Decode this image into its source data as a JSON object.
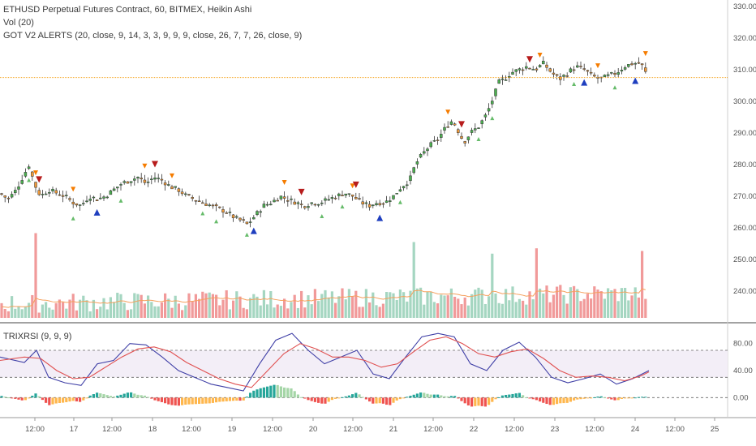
{
  "legend": {
    "main_title": "ETHUSD Perpetual Futures Contract, 60, BITMEX, Heikin Ashi",
    "vol_title": "Vol (20)",
    "alerts_title": "GOT V2 ALERTS (20, close, 9, 14, 3, 3, 9, 9, 9, close, 26, 7, 7, 26, close, 9)",
    "trix_title": "TRIXRSI (9, 9, 9)"
  },
  "colors": {
    "up": "#26a69a",
    "down": "#ef9a3a",
    "vol_up": "#a5d6c1",
    "vol_down": "#f19a9a",
    "vol_ma": "#f5a05c",
    "price_line": "#f5a623",
    "trix_blue": "#3f3fa6",
    "trix_red": "#e05050",
    "hist_green": "#26a69a",
    "hist_light_green": "#a5d6a7",
    "hist_red": "#ef5350",
    "hist_orange": "#ffb74d",
    "alert_orange": "#f57c00",
    "alert_red": "#b71c1c",
    "alert_green": "#66bb6a",
    "alert_blue": "#1f3fbf"
  },
  "chart_data": [
    {
      "type": "candlestick",
      "name": "ETHUSD Heikin Ashi",
      "ylim": [
        230,
        332
      ],
      "yticks": [
        "330.00",
        "320.00",
        "310.00",
        "300.00",
        "290.00",
        "280.00",
        "270.00",
        "260.00",
        "250.00",
        "240.00"
      ],
      "last_price": 307.5,
      "x_ticks": [
        "12:00",
        "17",
        "12:00",
        "18",
        "12:00",
        "19",
        "12:00",
        "20",
        "12:00",
        "21",
        "12:00",
        "22",
        "12:00",
        "23",
        "12:00",
        "24",
        "12:00",
        "25"
      ],
      "close_path": [
        [
          0,
          271
        ],
        [
          10,
          269
        ],
        [
          20,
          272
        ],
        [
          30,
          277
        ],
        [
          36,
          280
        ],
        [
          42,
          274
        ],
        [
          50,
          270
        ],
        [
          60,
          272
        ],
        [
          70,
          271
        ],
        [
          80,
          270
        ],
        [
          90,
          268
        ],
        [
          100,
          267
        ],
        [
          110,
          270
        ],
        [
          120,
          269
        ],
        [
          130,
          270
        ],
        [
          140,
          272
        ],
        [
          150,
          274
        ],
        [
          160,
          275
        ],
        [
          170,
          276
        ],
        [
          180,
          274
        ],
        [
          190,
          276
        ],
        [
          200,
          275
        ],
        [
          210,
          273
        ],
        [
          220,
          272
        ],
        [
          230,
          270
        ],
        [
          240,
          269
        ],
        [
          250,
          268
        ],
        [
          260,
          267
        ],
        [
          270,
          266
        ],
        [
          280,
          265
        ],
        [
          290,
          263
        ],
        [
          300,
          262
        ],
        [
          305,
          261
        ],
        [
          315,
          264
        ],
        [
          325,
          267
        ],
        [
          335,
          268
        ],
        [
          345,
          270
        ],
        [
          355,
          269
        ],
        [
          365,
          268
        ],
        [
          375,
          267
        ],
        [
          385,
          268
        ],
        [
          395,
          268
        ],
        [
          405,
          269
        ],
        [
          415,
          270
        ],
        [
          425,
          271
        ],
        [
          435,
          270
        ],
        [
          445,
          268
        ],
        [
          455,
          267
        ],
        [
          465,
          268
        ],
        [
          475,
          268
        ],
        [
          485,
          270
        ],
        [
          495,
          273
        ],
        [
          505,
          275
        ],
        [
          512,
          280
        ],
        [
          520,
          283
        ],
        [
          530,
          286
        ],
        [
          540,
          288
        ],
        [
          550,
          292
        ],
        [
          558,
          294
        ],
        [
          566,
          290
        ],
        [
          572,
          287
        ],
        [
          580,
          290
        ],
        [
          590,
          292
        ],
        [
          600,
          296
        ],
        [
          608,
          301
        ],
        [
          615,
          306
        ],
        [
          622,
          307
        ],
        [
          630,
          309
        ],
        [
          640,
          310
        ],
        [
          650,
          311
        ],
        [
          660,
          310
        ],
        [
          670,
          312
        ],
        [
          680,
          309
        ],
        [
          690,
          307
        ],
        [
          700,
          309
        ],
        [
          710,
          311
        ],
        [
          720,
          310
        ],
        [
          730,
          308
        ],
        [
          740,
          307
        ],
        [
          750,
          308
        ],
        [
          760,
          309
        ],
        [
          770,
          311
        ],
        [
          780,
          312
        ],
        [
          790,
          312
        ],
        [
          800,
          307
        ]
      ]
    },
    {
      "type": "bar",
      "name": "Vol (20)",
      "description_only_of_shape": "volume histogram with moving-average line",
      "tall_spikes": [
        [
          44,
          0.95
        ],
        [
          510,
          0.85
        ],
        [
          608,
          0.72
        ],
        [
          663,
          0.78
        ],
        [
          792,
          0.75
        ]
      ]
    },
    {
      "type": "line",
      "name": "TRIXRSI (9, 9, 9)",
      "ylim": [
        -20,
        100
      ],
      "yticks": [
        "80.00",
        "40.00",
        "0.00"
      ],
      "levels": [
        70,
        30,
        0
      ],
      "series": [
        {
          "name": "blue",
          "values": [
            [
              0,
              60
            ],
            [
              30,
              52
            ],
            [
              45,
              70
            ],
            [
              60,
              30
            ],
            [
              80,
              22
            ],
            [
              100,
              18
            ],
            [
              120,
              50
            ],
            [
              140,
              55
            ],
            [
              160,
              80
            ],
            [
              180,
              78
            ],
            [
              200,
              60
            ],
            [
              220,
              40
            ],
            [
              240,
              30
            ],
            [
              260,
              20
            ],
            [
              280,
              15
            ],
            [
              300,
              10
            ],
            [
              320,
              50
            ],
            [
              340,
              85
            ],
            [
              360,
              95
            ],
            [
              380,
              70
            ],
            [
              400,
              50
            ],
            [
              420,
              60
            ],
            [
              440,
              70
            ],
            [
              460,
              35
            ],
            [
              480,
              28
            ],
            [
              500,
              60
            ],
            [
              520,
              90
            ],
            [
              540,
              95
            ],
            [
              560,
              90
            ],
            [
              580,
              50
            ],
            [
              600,
              40
            ],
            [
              620,
              70
            ],
            [
              640,
              82
            ],
            [
              660,
              60
            ],
            [
              680,
              30
            ],
            [
              700,
              22
            ],
            [
              720,
              28
            ],
            [
              740,
              35
            ],
            [
              760,
              20
            ],
            [
              780,
              28
            ],
            [
              800,
              40
            ]
          ]
        },
        {
          "name": "red",
          "values": [
            [
              0,
              55
            ],
            [
              30,
              60
            ],
            [
              50,
              58
            ],
            [
              70,
              40
            ],
            [
              90,
              28
            ],
            [
              110,
              30
            ],
            [
              130,
              45
            ],
            [
              150,
              60
            ],
            [
              170,
              72
            ],
            [
              190,
              75
            ],
            [
              210,
              68
            ],
            [
              230,
              52
            ],
            [
              250,
              40
            ],
            [
              270,
              28
            ],
            [
              290,
              20
            ],
            [
              310,
              15
            ],
            [
              330,
              40
            ],
            [
              350,
              65
            ],
            [
              370,
              80
            ],
            [
              390,
              72
            ],
            [
              410,
              60
            ],
            [
              430,
              60
            ],
            [
              450,
              55
            ],
            [
              470,
              45
            ],
            [
              490,
              50
            ],
            [
              510,
              68
            ],
            [
              530,
              85
            ],
            [
              550,
              90
            ],
            [
              570,
              80
            ],
            [
              590,
              65
            ],
            [
              610,
              60
            ],
            [
              630,
              68
            ],
            [
              650,
              72
            ],
            [
              670,
              58
            ],
            [
              690,
              40
            ],
            [
              710,
              30
            ],
            [
              730,
              32
            ],
            [
              750,
              30
            ],
            [
              770,
              25
            ],
            [
              790,
              32
            ],
            [
              800,
              38
            ]
          ]
        }
      ]
    }
  ]
}
